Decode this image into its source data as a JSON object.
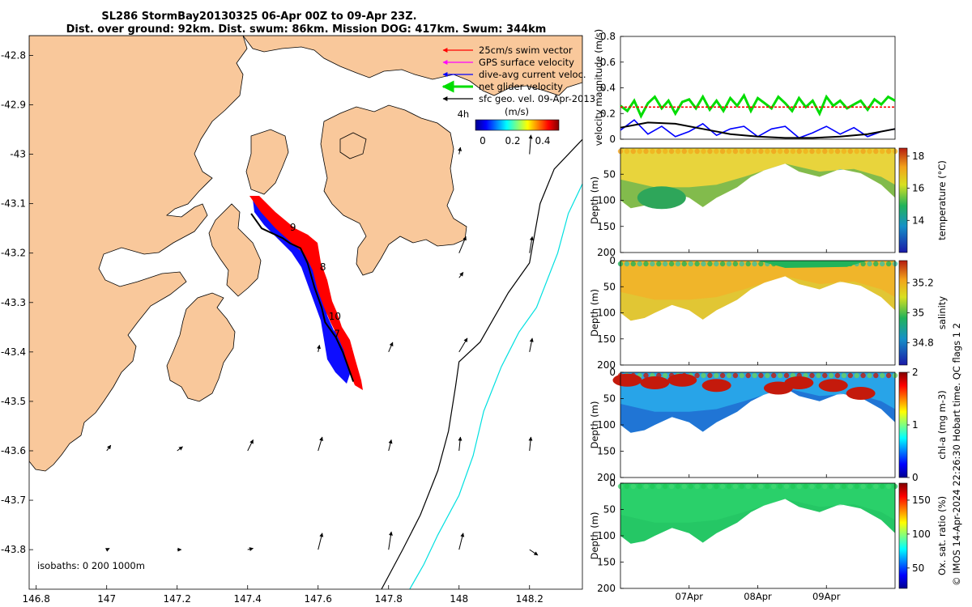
{
  "title": {
    "line1": "SL286 StormBay20130325 06-Apr 00Z to 09-Apr 23Z.",
    "line2": "Dist. over ground: 92km. Dist. swum: 86km. Mission DOG: 417km. Swum: 344km"
  },
  "credit": "© IMOS 14-Apr-2024 22:26:30 Hobart time. QC flags 1  2",
  "colors": {
    "land": "#f9c89b",
    "track": "#000000",
    "swim": "#ff0000",
    "gps": "#ff00ff",
    "current": "#0000ff",
    "net": "#00dd00",
    "iso200": "#000000",
    "iso1000": "#00e0e0"
  },
  "chart_data": [
    {
      "id": "map",
      "type": "scatter",
      "xlim": [
        146.78,
        148.35
      ],
      "ylim": [
        -43.88,
        -42.76
      ],
      "xticks": [
        146.8,
        147,
        147.2,
        147.4,
        147.6,
        147.8,
        148,
        148.2
      ],
      "xtick_labels": [
        "146.8",
        "147",
        "147.2",
        "147.4",
        "147.6",
        "147.8",
        "148",
        "148.2"
      ],
      "yticks": [
        -42.8,
        -42.9,
        -43,
        -43.1,
        -43.2,
        -43.3,
        -43.4,
        -43.5,
        -43.6,
        -43.7,
        -43.8
      ],
      "ytick_labels": [
        "-42.8",
        "-42.9",
        "-43",
        "-43.1",
        "-43.2",
        "-43.3",
        "-43.4",
        "-43.5",
        "-43.6",
        "-43.7",
        "-43.8"
      ],
      "legend": [
        {
          "label": "25cm/s swim vector",
          "color": "#ff0000"
        },
        {
          "label": "GPS surface velocity",
          "color": "#ff00ff"
        },
        {
          "label": "dive-avg current veloc.",
          "color": "#0000ff"
        },
        {
          "label": "net glider velocity",
          "color": "#00dd00"
        },
        {
          "label": "sfc geo. vel. 09-Apr-2013",
          "color": "#000000"
        }
      ],
      "legend_position": "top-right",
      "colorbar": {
        "label": "(m/s)",
        "ticks": [
          "0",
          "0.2",
          "0.4"
        ],
        "range": [
          0,
          0.5
        ]
      },
      "isobath_text": "isobaths: 0   200   1000m",
      "track": [
        [
          147.41,
          -43.12
        ],
        [
          147.44,
          -43.15
        ],
        [
          147.47,
          -43.16
        ],
        [
          147.5,
          -43.17
        ],
        [
          147.52,
          -43.18
        ],
        [
          147.55,
          -43.19
        ],
        [
          147.57,
          -43.22
        ],
        [
          147.59,
          -43.27
        ],
        [
          147.61,
          -43.31
        ],
        [
          147.62,
          -43.34
        ],
        [
          147.65,
          -43.37
        ],
        [
          147.67,
          -43.4
        ],
        [
          147.69,
          -43.44
        ],
        [
          147.7,
          -43.46
        ]
      ],
      "day_labels": [
        {
          "text": "9",
          "lon": 147.52,
          "lat": -43.155
        },
        {
          "text": "8",
          "lon": 147.605,
          "lat": -43.235
        },
        {
          "text": "10",
          "lon": 147.63,
          "lat": -43.335
        },
        {
          "text": "7",
          "lon": 147.645,
          "lat": -43.37
        }
      ],
      "hour_label": {
        "text": "4h",
        "lon": 147.995,
        "lat": -42.925
      },
      "isobath_200": [
        [
          147.78,
          -43.88
        ],
        [
          147.84,
          -43.8
        ],
        [
          147.89,
          -43.73
        ],
        [
          147.94,
          -43.64
        ],
        [
          147.97,
          -43.56
        ],
        [
          147.99,
          -43.47
        ],
        [
          148.0,
          -43.42
        ],
        [
          148.06,
          -43.38
        ],
        [
          148.1,
          -43.33
        ],
        [
          148.14,
          -43.28
        ],
        [
          148.2,
          -43.22
        ],
        [
          148.23,
          -43.1
        ],
        [
          148.27,
          -43.03
        ],
        [
          148.35,
          -42.97
        ]
      ],
      "isobath_1000": [
        [
          147.86,
          -43.88
        ],
        [
          147.9,
          -43.83
        ],
        [
          147.94,
          -43.77
        ],
        [
          148.0,
          -43.69
        ],
        [
          148.04,
          -43.61
        ],
        [
          148.07,
          -43.52
        ],
        [
          148.12,
          -43.43
        ],
        [
          148.17,
          -43.36
        ],
        [
          148.22,
          -43.31
        ],
        [
          148.28,
          -43.2
        ],
        [
          148.31,
          -43.12
        ],
        [
          148.35,
          -43.06
        ]
      ],
      "geo_vectors": [
        {
          "lon": 147.0,
          "lat": -43.8,
          "u": 0.02,
          "v": 0.01
        },
        {
          "lon": 147.2,
          "lat": -43.8,
          "u": 0.03,
          "v": 0.0
        },
        {
          "lon": 147.4,
          "lat": -43.8,
          "u": 0.04,
          "v": 0.01
        },
        {
          "lon": 147.6,
          "lat": -43.8,
          "u": 0.03,
          "v": 0.12
        },
        {
          "lon": 147.8,
          "lat": -43.8,
          "u": 0.02,
          "v": 0.13
        },
        {
          "lon": 148.0,
          "lat": -43.8,
          "u": 0.03,
          "v": 0.12
        },
        {
          "lon": 148.2,
          "lat": -43.8,
          "u": 0.06,
          "v": -0.04
        },
        {
          "lon": 147.0,
          "lat": -43.6,
          "u": 0.03,
          "v": 0.04
        },
        {
          "lon": 147.2,
          "lat": -43.6,
          "u": 0.04,
          "v": 0.03
        },
        {
          "lon": 147.4,
          "lat": -43.6,
          "u": 0.04,
          "v": 0.08
        },
        {
          "lon": 147.6,
          "lat": -43.6,
          "u": 0.03,
          "v": 0.1
        },
        {
          "lon": 147.8,
          "lat": -43.6,
          "u": 0.02,
          "v": 0.08
        },
        {
          "lon": 148.0,
          "lat": -43.6,
          "u": 0.01,
          "v": 0.1
        },
        {
          "lon": 148.2,
          "lat": -43.6,
          "u": 0.01,
          "v": 0.1
        },
        {
          "lon": 147.8,
          "lat": -43.4,
          "u": 0.03,
          "v": 0.07
        },
        {
          "lon": 148.0,
          "lat": -43.4,
          "u": 0.06,
          "v": 0.1
        },
        {
          "lon": 148.2,
          "lat": -43.4,
          "u": 0.02,
          "v": 0.1
        },
        {
          "lon": 147.6,
          "lat": -43.4,
          "u": 0.01,
          "v": 0.05
        },
        {
          "lon": 148.0,
          "lat": -43.2,
          "u": 0.05,
          "v": 0.12
        },
        {
          "lon": 148.2,
          "lat": -43.2,
          "u": 0.02,
          "v": 0.12
        },
        {
          "lon": 148.2,
          "lat": -43.0,
          "u": 0.01,
          "v": 0.14
        },
        {
          "lon": 148.0,
          "lat": -43.0,
          "u": 0.01,
          "v": 0.05
        },
        {
          "lon": 148.0,
          "lat": -43.25,
          "u": 0.03,
          "v": 0.04
        }
      ]
    },
    {
      "id": "velocity",
      "type": "line",
      "ylabel": "velocity magnitude (m/s)",
      "xlim": [
        0,
        4
      ],
      "ylim": [
        0,
        0.8
      ],
      "yticks": [
        0,
        0.2,
        0.4,
        0.6,
        0.8
      ],
      "ytick_labels": [
        "0",
        "0.2",
        "0.4",
        "0.6",
        "0.8"
      ],
      "series": [
        {
          "name": "net glider velocity",
          "color": "#00dd00",
          "x": [
            0,
            0.1,
            0.2,
            0.3,
            0.4,
            0.5,
            0.6,
            0.7,
            0.8,
            0.9,
            1.0,
            1.1,
            1.2,
            1.3,
            1.4,
            1.5,
            1.6,
            1.7,
            1.8,
            1.9,
            2.0,
            2.1,
            2.2,
            2.3,
            2.4,
            2.5,
            2.6,
            2.7,
            2.8,
            2.9,
            3.0,
            3.1,
            3.2,
            3.3,
            3.4,
            3.5,
            3.6,
            3.7,
            3.8,
            3.9,
            4.0
          ],
          "values": [
            0.26,
            0.22,
            0.3,
            0.18,
            0.28,
            0.33,
            0.24,
            0.3,
            0.2,
            0.29,
            0.31,
            0.24,
            0.33,
            0.23,
            0.3,
            0.22,
            0.32,
            0.26,
            0.34,
            0.22,
            0.32,
            0.28,
            0.24,
            0.33,
            0.28,
            0.22,
            0.32,
            0.25,
            0.3,
            0.2,
            0.33,
            0.26,
            0.3,
            0.24,
            0.27,
            0.3,
            0.23,
            0.31,
            0.27,
            0.33,
            0.3
          ]
        },
        {
          "name": "swim speed",
          "color": "#ff0000",
          "x": [
            0,
            4
          ],
          "values": [
            0.25,
            0.25
          ]
        },
        {
          "name": "dive-avg current",
          "color": "#0000ff",
          "x": [
            0,
            0.2,
            0.4,
            0.6,
            0.8,
            1.0,
            1.2,
            1.4,
            1.6,
            1.8,
            2.0,
            2.2,
            2.4,
            2.6,
            2.8,
            3.0,
            3.2,
            3.4,
            3.6,
            3.8,
            4.0
          ],
          "values": [
            0.07,
            0.15,
            0.04,
            0.1,
            0.02,
            0.06,
            0.12,
            0.03,
            0.08,
            0.1,
            0.02,
            0.08,
            0.1,
            0.01,
            0.05,
            0.1,
            0.04,
            0.09,
            0.02,
            0.06,
            0.08
          ]
        },
        {
          "name": "sfc geo. vel.",
          "color": "#000000",
          "x": [
            0,
            0.4,
            0.8,
            1.2,
            1.6,
            2.0,
            2.4,
            2.8,
            3.2,
            3.6,
            4.0
          ],
          "values": [
            0.09,
            0.13,
            0.12,
            0.08,
            0.04,
            0.02,
            0.01,
            0.01,
            0.02,
            0.04,
            0.08
          ]
        }
      ]
    },
    {
      "id": "temperature",
      "type": "heatmap",
      "ylabel": "Depth (m)",
      "cbar_label": "temperature (°C)",
      "xlim": [
        0,
        4
      ],
      "ylim": [
        200,
        0
      ],
      "yticks": [
        0,
        50,
        100,
        150,
        200
      ],
      "ytick_labels": [
        "",
        "50",
        "100",
        "150",
        "200"
      ],
      "cbar_range": [
        12,
        18.5
      ],
      "cbar_ticks": [
        14,
        16,
        18
      ],
      "cbar_tick_labels": [
        "14",
        "16",
        "18"
      ],
      "typical_value": 16.8
    },
    {
      "id": "salinity",
      "type": "heatmap",
      "ylabel": "Depth (m)",
      "cbar_label": "salinity",
      "xlim": [
        0,
        4
      ],
      "ylim": [
        200,
        0
      ],
      "yticks": [
        0,
        50,
        100,
        150,
        200
      ],
      "ytick_labels": [
        "0",
        "50",
        "100",
        "150",
        "200"
      ],
      "cbar_range": [
        34.65,
        35.35
      ],
      "cbar_ticks": [
        34.8,
        35,
        35.2
      ],
      "cbar_tick_labels": [
        "34.8",
        "35",
        "35.2"
      ],
      "typical_value": 35.1
    },
    {
      "id": "chla",
      "type": "heatmap",
      "ylabel": "Depth (m)",
      "cbar_label": "chl-a (mg m-3)",
      "xlim": [
        0,
        4
      ],
      "ylim": [
        200,
        0
      ],
      "yticks": [
        0,
        50,
        100,
        150,
        200
      ],
      "ytick_labels": [
        "0",
        "50",
        "100",
        "150",
        "200"
      ],
      "cbar_range": [
        0,
        2
      ],
      "cbar_ticks": [
        0,
        1,
        2
      ],
      "cbar_tick_labels": [
        "0",
        "1",
        "2"
      ],
      "typical_value": 0.9
    },
    {
      "id": "oxygen",
      "type": "heatmap",
      "ylabel": "Depth (m)",
      "cbar_label": "Ox. sat. ratio (%)",
      "xlim": [
        0,
        4
      ],
      "ylim": [
        200,
        0
      ],
      "yticks": [
        0,
        50,
        100,
        150,
        200
      ],
      "ytick_labels": [
        "0",
        "50",
        "100",
        "150",
        "200"
      ],
      "cbar_range": [
        20,
        175
      ],
      "cbar_ticks": [
        50,
        100,
        150
      ],
      "cbar_tick_labels": [
        "50",
        "100",
        "150"
      ],
      "typical_value": 100,
      "xticks": [
        1,
        2,
        3
      ],
      "xtick_labels": [
        "07Apr",
        "08Apr",
        "09Apr"
      ]
    }
  ],
  "section_bottom": [
    [
      0,
      100
    ],
    [
      0.15,
      115
    ],
    [
      0.35,
      110
    ],
    [
      0.5,
      100
    ],
    [
      0.75,
      85
    ],
    [
      1.0,
      95
    ],
    [
      1.2,
      113
    ],
    [
      1.4,
      95
    ],
    [
      1.7,
      75
    ],
    [
      1.9,
      55
    ],
    [
      2.1,
      42
    ],
    [
      2.4,
      30
    ],
    [
      2.6,
      45
    ],
    [
      2.9,
      55
    ],
    [
      3.2,
      40
    ],
    [
      3.5,
      48
    ],
    [
      3.8,
      70
    ],
    [
      4.0,
      95
    ]
  ]
}
